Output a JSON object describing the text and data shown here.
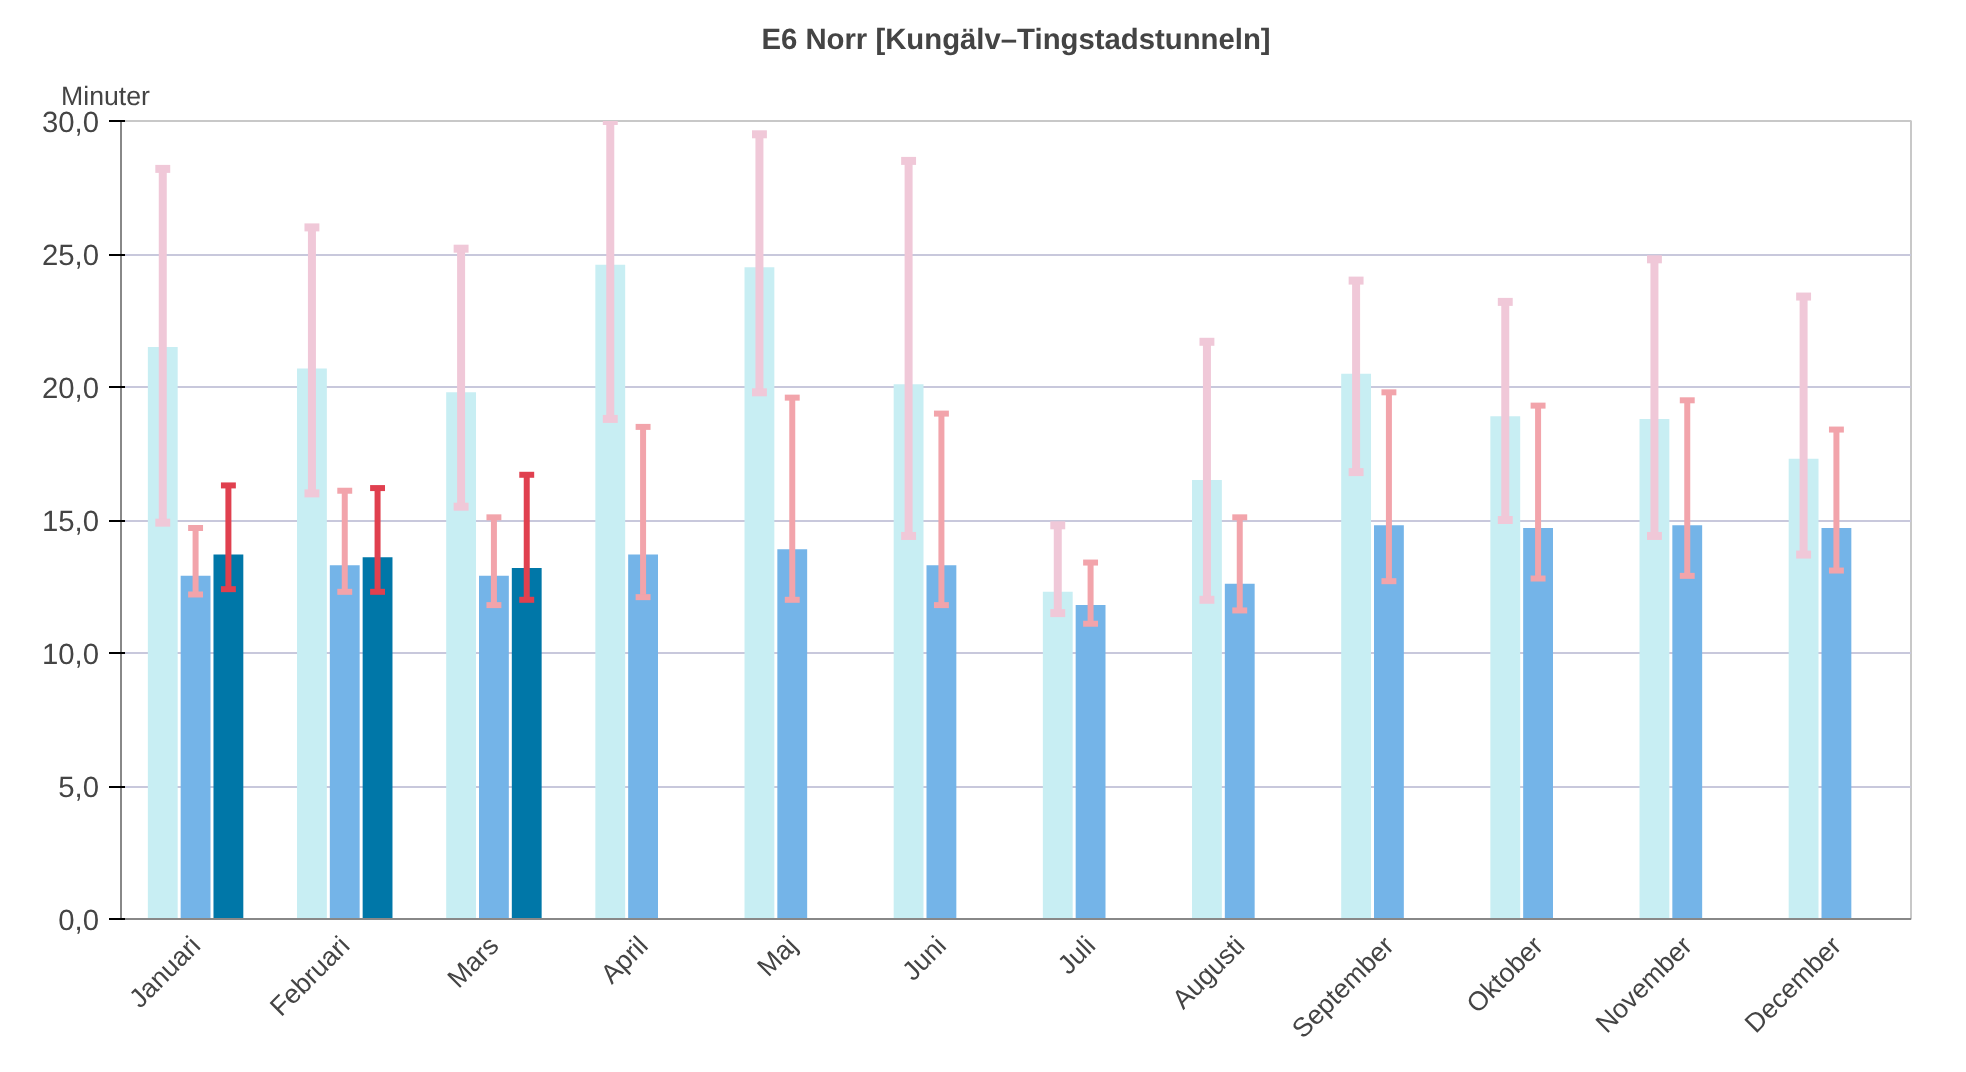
{
  "chart_data": {
    "type": "bar",
    "title": "E6 Norr [Kungälv–Tingstadstunneln]",
    "ylabel": "Minuter",
    "categories": [
      "Januari",
      "Februari",
      "Mars",
      "April",
      "Maj",
      "Juni",
      "Juli",
      "Augusti",
      "September",
      "Oktober",
      "November",
      "December"
    ],
    "series": [
      {
        "color": "#c8eef3",
        "values": [
          21.5,
          20.7,
          19.8,
          24.6,
          24.5,
          20.1,
          12.3,
          16.5,
          20.5,
          18.9,
          18.8,
          17.3
        ],
        "errors": [
          [
            14.9,
            28.2
          ],
          [
            16.0,
            26.0
          ],
          [
            15.5,
            25.2
          ],
          [
            18.8,
            30.0
          ],
          [
            19.8,
            29.5
          ],
          [
            14.4,
            28.5
          ],
          [
            11.5,
            14.8
          ],
          [
            12.0,
            21.7
          ],
          [
            16.8,
            24.0
          ],
          [
            15.0,
            23.2
          ],
          [
            14.4,
            24.8
          ],
          [
            13.7,
            23.4
          ]
        ]
      },
      {
        "color": "#74b4e8",
        "values": [
          12.9,
          13.3,
          12.9,
          13.7,
          13.9,
          13.3,
          11.8,
          12.6,
          14.8,
          14.7,
          14.8,
          14.7
        ],
        "errors": [
          [
            12.2,
            14.7
          ],
          [
            12.3,
            16.1
          ],
          [
            11.8,
            15.1
          ],
          [
            12.1,
            18.5
          ],
          [
            12.0,
            19.6
          ],
          [
            11.8,
            19.0
          ],
          [
            11.1,
            13.4
          ],
          [
            11.6,
            15.1
          ],
          [
            12.7,
            19.8
          ],
          [
            12.8,
            19.3
          ],
          [
            12.9,
            19.5
          ],
          [
            13.1,
            18.4
          ]
        ]
      },
      {
        "color": "#0077a8",
        "values": [
          13.7,
          13.6,
          13.2,
          null,
          null,
          null,
          null,
          null,
          null,
          null,
          null,
          null
        ],
        "errors": [
          [
            12.4,
            16.3
          ],
          [
            12.3,
            16.2
          ],
          [
            12.0,
            16.7
          ],
          null,
          null,
          null,
          null,
          null,
          null,
          null,
          null,
          null
        ]
      }
    ],
    "ylim": [
      0,
      30
    ],
    "yticks": [
      {
        "value": 0,
        "label": "0,0"
      },
      {
        "value": 5,
        "label": "5,0"
      },
      {
        "value": 10,
        "label": "10,0"
      },
      {
        "value": 15,
        "label": "15,0"
      },
      {
        "value": 20,
        "label": "20,0"
      },
      {
        "value": 25,
        "label": "25,0"
      },
      {
        "value": 30,
        "label": "30,0"
      }
    ],
    "grid": "y"
  }
}
